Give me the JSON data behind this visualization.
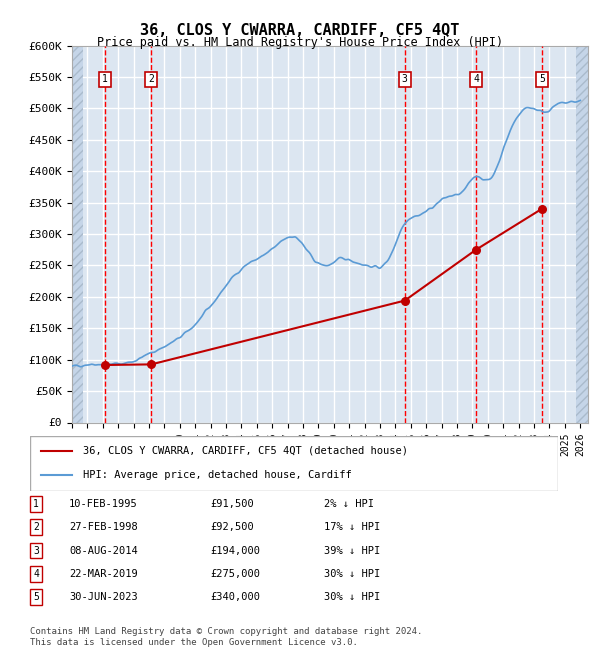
{
  "title": "36, CLOS Y CWARRA, CARDIFF, CF5 4QT",
  "subtitle": "Price paid vs. HM Land Registry's House Price Index (HPI)",
  "ylabel": "",
  "ylim": [
    0,
    600000
  ],
  "yticks": [
    0,
    50000,
    100000,
    150000,
    200000,
    250000,
    300000,
    350000,
    400000,
    450000,
    500000,
    550000,
    600000
  ],
  "ytick_labels": [
    "£0",
    "£50K",
    "£100K",
    "£150K",
    "£200K",
    "£250K",
    "£300K",
    "£350K",
    "£400K",
    "£450K",
    "£500K",
    "£550K",
    "£600K"
  ],
  "xlim_start": 1993.0,
  "xlim_end": 2026.5,
  "hpi_color": "#5b9bd5",
  "sale_color": "#c00000",
  "bg_color": "#dce6f1",
  "hatched_color": "#c5d5e8",
  "grid_color": "#ffffff",
  "dashed_color": "#ff0000",
  "sales": [
    {
      "num": 1,
      "date": "10-FEB-1995",
      "x": 1995.12,
      "price": 91500,
      "pct": "2%",
      "dir": "↓"
    },
    {
      "num": 2,
      "date": "27-FEB-1998",
      "x": 1998.15,
      "price": 92500,
      "pct": "17%",
      "dir": "↓"
    },
    {
      "num": 3,
      "date": "08-AUG-2014",
      "x": 2014.6,
      "price": 194000,
      "pct": "39%",
      "dir": "↓"
    },
    {
      "num": 4,
      "date": "22-MAR-2019",
      "x": 2019.23,
      "price": 275000,
      "pct": "30%",
      "dir": "↓"
    },
    {
      "num": 5,
      "date": "30-JUN-2023",
      "x": 2023.5,
      "price": 340000,
      "pct": "30%",
      "dir": "↓"
    }
  ],
  "table_rows": [
    {
      "num": 1,
      "date": "10-FEB-1995",
      "price": "£91,500",
      "hpi": "2% ↓ HPI"
    },
    {
      "num": 2,
      "date": "27-FEB-1998",
      "price": "£92,500",
      "hpi": "17% ↓ HPI"
    },
    {
      "num": 3,
      "date": "08-AUG-2014",
      "price": "£194,000",
      "hpi": "39% ↓ HPI"
    },
    {
      "num": 4,
      "date": "22-MAR-2019",
      "price": "£275,000",
      "hpi": "30% ↓ HPI"
    },
    {
      "num": 5,
      "date": "30-JUN-2023",
      "price": "£340,000",
      "hpi": "30% ↓ HPI"
    }
  ],
  "footer": "Contains HM Land Registry data © Crown copyright and database right 2024.\nThis data is licensed under the Open Government Licence v3.0.",
  "legend_line1": "36, CLOS Y CWARRA, CARDIFF, CF5 4QT (detached house)",
  "legend_line2": "HPI: Average price, detached house, Cardiff"
}
